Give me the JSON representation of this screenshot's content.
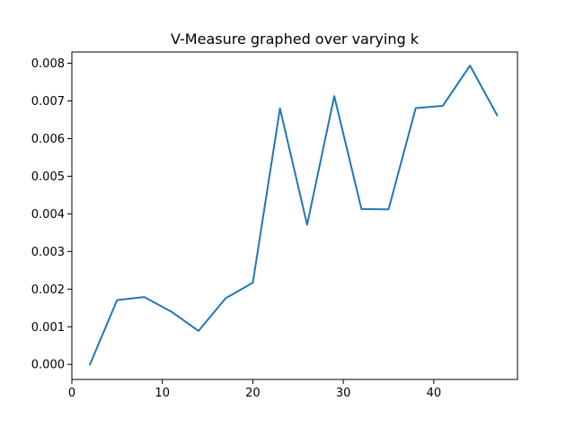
{
  "chart_data": {
    "type": "line",
    "title": "V-Measure graphed over varying k",
    "xlabel": "",
    "ylabel": "",
    "xlim": [
      0,
      49.25
    ],
    "ylim": [
      -0.0004,
      0.0083
    ],
    "grid": false,
    "legend": "none",
    "xticks": [
      0,
      10,
      20,
      30,
      40
    ],
    "xtick_labels": [
      "0",
      "10",
      "20",
      "30",
      "40"
    ],
    "yticks": [
      0.0,
      0.001,
      0.002,
      0.003,
      0.004,
      0.005,
      0.006,
      0.007,
      0.008
    ],
    "ytick_labels": [
      "0.000",
      "0.001",
      "0.002",
      "0.003",
      "0.004",
      "0.005",
      "0.006",
      "0.007",
      "0.008"
    ],
    "series": [
      {
        "color": "#1f77b4",
        "x": [
          2,
          5,
          8,
          11,
          14,
          17,
          20,
          23,
          26,
          29,
          32,
          35,
          38,
          41,
          44,
          47
        ],
        "values": [
          0.0,
          0.00171,
          0.00179,
          0.0014,
          0.00089,
          0.00176,
          0.00217,
          0.0068,
          0.00371,
          0.00713,
          0.00413,
          0.00412,
          0.00681,
          0.00687,
          0.00794,
          0.00662
        ]
      }
    ]
  }
}
